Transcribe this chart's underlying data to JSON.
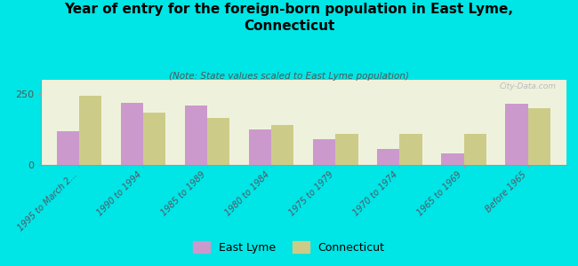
{
  "title": "Year of entry for the foreign-born population in East Lyme,\nConnecticut",
  "subtitle": "(Note: State values scaled to East Lyme population)",
  "categories": [
    "1995 to March 2...",
    "1990 to 1994",
    "1985 to 1989",
    "1980 to 1984",
    "1975 to 1979",
    "1970 to 1974",
    "1965 to 1969",
    "Before 1965"
  ],
  "east_lyme": [
    120,
    220,
    210,
    125,
    90,
    55,
    40,
    215
  ],
  "connecticut": [
    245,
    185,
    165,
    140,
    110,
    110,
    110,
    200
  ],
  "east_lyme_color": "#cc99cc",
  "connecticut_color": "#cccc88",
  "background_color": "#00e5e5",
  "plot_bg_color": "#eef2dc",
  "ylim": [
    0,
    300
  ],
  "ytick_labels": [
    "0",
    "250"
  ],
  "ytick_vals": [
    0,
    250
  ],
  "watermark": "City-Data.com",
  "legend_east_lyme": "East Lyme",
  "legend_connecticut": "Connecticut",
  "bar_width": 0.35
}
